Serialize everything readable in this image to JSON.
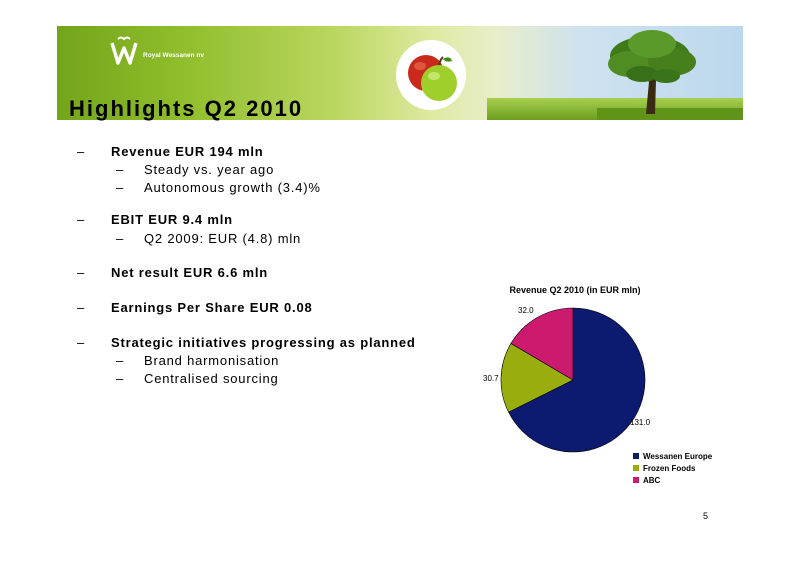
{
  "header": {
    "brand_name": "Royal Wessanen nv",
    "logo_icon": "wessanen-w-logo-icon",
    "apple_icon": "apples-icon",
    "tree_icon": "tree-icon"
  },
  "slide": {
    "title": "Highlights Q2 2010",
    "page_number": "5",
    "bullets": [
      {
        "level": 1,
        "text": "Revenue EUR 194 mln"
      },
      {
        "level": 2,
        "text": "Steady vs. year ago"
      },
      {
        "level": 2,
        "text": "Autonomous growth (3.4)%"
      },
      {
        "level": 1,
        "text": "EBIT EUR 9.4 mln"
      },
      {
        "level": 2,
        "text": "Q2 2009: EUR (4.8) mln"
      },
      {
        "level": 1,
        "text": "Net result EUR 6.6 mln"
      },
      {
        "level": 1,
        "text": "Earnings Per Share EUR 0.08"
      },
      {
        "level": 1,
        "text": "Strategic initiatives progressing as planned"
      },
      {
        "level": 2,
        "text": "Brand harmonisation"
      },
      {
        "level": 2,
        "text": "Centralised sourcing"
      }
    ],
    "dash": "–"
  },
  "chart_data": {
    "type": "pie",
    "title": "Revenue Q2 2010 (in EUR mln)",
    "categories": [
      "Wessanen Europe",
      "Frozen Foods",
      "ABC"
    ],
    "values": [
      131.0,
      30.7,
      32.0
    ],
    "value_labels": [
      "131.0",
      "30.7",
      "32.0"
    ],
    "colors": [
      "#0c1a6f",
      "#99ad0f",
      "#cc1a6e"
    ],
    "legend_position": "bottom-right"
  }
}
